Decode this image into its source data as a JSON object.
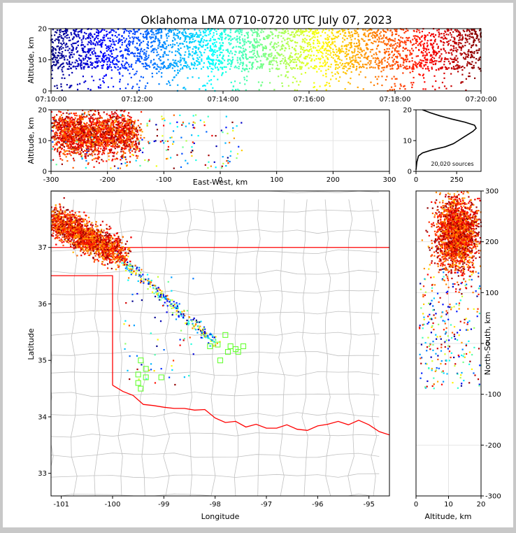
{
  "title": "Oklahoma LMA 0710-0720 UTC July 07, 2023",
  "colors": {
    "jet": [
      "#00007f",
      "#0000ff",
      "#007fff",
      "#00ffff",
      "#7fff7f",
      "#ffff00",
      "#ff7f00",
      "#ff0000",
      "#7f0000"
    ],
    "state_border": "#ff0000",
    "county_border": "#c0c0c0",
    "station": "#66ff33"
  },
  "chart_data": [
    {
      "name": "time-altitude",
      "type": "scatter",
      "ylabel": "Altitude, km",
      "xlim": [
        "07:10:00",
        "07:20:00"
      ],
      "ylim": [
        0,
        20
      ],
      "x_ticks": [
        "07:10:00",
        "07:12:00",
        "07:14:00",
        "07:16:00",
        "07:18:00",
        "07:20:00"
      ],
      "y_ticks": [
        0,
        10,
        20
      ],
      "altitude_core_km": [
        7,
        20
      ],
      "color_by": "time"
    },
    {
      "name": "eastwest-altitude",
      "type": "scatter",
      "xlabel": "East-West, km",
      "ylabel": "Altitude, km",
      "xlim": [
        -300,
        300
      ],
      "ylim": [
        0,
        20
      ],
      "x_ticks": [
        -300,
        -200,
        -100,
        0,
        100,
        200,
        300
      ],
      "y_ticks": [
        0,
        10,
        20
      ],
      "grid": true,
      "core_ew_km": [
        -290,
        -150
      ],
      "core_alt_km": [
        5,
        20
      ]
    },
    {
      "name": "altitude-histogram",
      "type": "line",
      "xlim": [
        0,
        400
      ],
      "ylim": [
        0,
        20
      ],
      "x_ticks": [
        0,
        250
      ],
      "y_ticks": [
        0,
        10,
        20
      ],
      "annotation": "20,020 sources",
      "profile": [
        [
          0,
          0.5
        ],
        [
          5,
          3
        ],
        [
          15,
          5
        ],
        [
          40,
          6
        ],
        [
          100,
          7
        ],
        [
          180,
          8
        ],
        [
          230,
          9
        ],
        [
          260,
          10
        ],
        [
          290,
          11
        ],
        [
          320,
          12
        ],
        [
          350,
          13
        ],
        [
          370,
          14
        ],
        [
          360,
          15
        ],
        [
          300,
          16
        ],
        [
          220,
          17
        ],
        [
          150,
          18
        ],
        [
          90,
          19
        ],
        [
          40,
          20
        ]
      ]
    },
    {
      "name": "plan-view",
      "type": "scatter",
      "xlabel": "Longitude",
      "ylabel": "Latitude",
      "xlim": [
        -101.2,
        -94.6
      ],
      "ylim": [
        32.6,
        38.0
      ],
      "x_ticks": [
        -101,
        -100,
        -99,
        -98,
        -97,
        -96,
        -95
      ],
      "y_ticks": [
        33,
        34,
        35,
        36,
        37
      ],
      "core_lon": [
        -101.2,
        -99.9
      ],
      "core_lat": [
        36.8,
        37.8
      ],
      "tail_end": [
        -98.0,
        35.3
      ],
      "stations": [
        [
          -97.95,
          35.28
        ],
        [
          -97.8,
          35.45
        ],
        [
          -98.1,
          35.25
        ],
        [
          -97.7,
          35.25
        ],
        [
          -97.55,
          35.15
        ],
        [
          -97.45,
          35.25
        ],
        [
          -97.9,
          35.0
        ],
        [
          -97.6,
          35.2
        ],
        [
          -99.45,
          35.0
        ],
        [
          -99.35,
          34.85
        ],
        [
          -99.5,
          34.75
        ],
        [
          -99.35,
          34.7
        ],
        [
          -99.05,
          34.7
        ],
        [
          -99.5,
          34.6
        ],
        [
          -99.45,
          34.5
        ],
        [
          -97.75,
          35.15
        ]
      ]
    },
    {
      "name": "altitude-northsouth",
      "type": "scatter",
      "xlabel": "Altitude, km",
      "ylabel": "North-South, km",
      "xlim": [
        0,
        20
      ],
      "ylim": [
        -300,
        300
      ],
      "x_ticks": [
        0,
        10,
        20
      ],
      "y_ticks": [
        -300,
        -200,
        -100,
        0,
        100,
        200,
        300
      ],
      "grid": true,
      "core_ns_km": [
        150,
        300
      ],
      "core_alt_km": [
        6,
        20
      ]
    }
  ]
}
